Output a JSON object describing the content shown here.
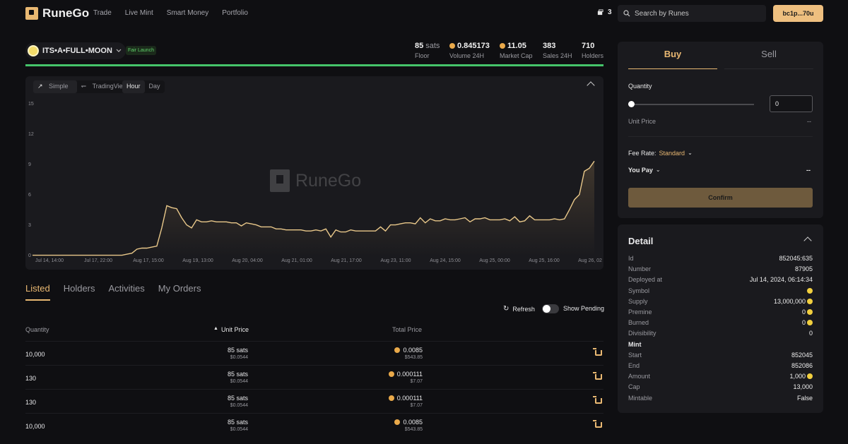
{
  "header": {
    "brand": "RuneGo",
    "nav": [
      "Trade",
      "Live Mint",
      "Smart Money",
      "Portfolio"
    ],
    "notifications": "3",
    "search_placeholder": "Search by Runes",
    "wallet": "bc1p...70u"
  },
  "token": {
    "name": "ITS•A•FULL•MOON",
    "badge": "Fair Launch",
    "stats": [
      {
        "value": "85",
        "unit": "sats",
        "label": "Floor"
      },
      {
        "value": "0.845173",
        "label": "Volume 24H"
      },
      {
        "value": "11.05",
        "label": "Market Cap"
      },
      {
        "value": "383",
        "label": "Sales 24H"
      },
      {
        "value": "710",
        "label": "Holders"
      }
    ]
  },
  "chart_controls": {
    "simple": "Simple",
    "tradingview": "TradingView",
    "hour": "Hour",
    "day": "Day",
    "watermark": "RuneGo"
  },
  "chart_data": {
    "type": "area",
    "yticks": [
      "15",
      "12",
      "9",
      "6",
      "3",
      "0"
    ],
    "ylim": [
      0,
      15
    ],
    "xticks": [
      "Jul 14, 14:00",
      "Jul 17, 22:00",
      "Aug 17, 15:00",
      "Aug 19, 13:00",
      "Aug 20, 04:00",
      "Aug 21, 01:00",
      "Aug 21, 17:00",
      "Aug 23, 11:00",
      "Aug 24, 15:00",
      "Aug 25, 00:00",
      "Aug 25, 16:00",
      "Aug 26, 02"
    ],
    "values": [
      0.1,
      0.1,
      0.1,
      0.1,
      0.1,
      0.1,
      0.1,
      0.1,
      0.1,
      0.1,
      0.1,
      0.1,
      0.1,
      0.1,
      0.1,
      0.1,
      0.1,
      0.1,
      0.1,
      0.2,
      0.3,
      0.7,
      0.8,
      0.8,
      0.9,
      1.0,
      2.8,
      5.0,
      4.8,
      4.7,
      3.8,
      3.1,
      2.8,
      3.6,
      3.4,
      3.4,
      3.5,
      3.4,
      3.4,
      3.4,
      3.3,
      3.3,
      3.0,
      3.3,
      3.2,
      3.1,
      2.9,
      2.9,
      2.9,
      2.7,
      2.7,
      2.6,
      2.6,
      2.6,
      2.6,
      2.5,
      2.5,
      2.6,
      2.5,
      2.7,
      1.9,
      2.6,
      2.4,
      2.4,
      2.6,
      2.5,
      2.5,
      2.5,
      2.5,
      2.5,
      2.9,
      2.5,
      3.1,
      3.1,
      3.2,
      3.3,
      3.3,
      3.2,
      3.8,
      3.3,
      3.7,
      3.5,
      3.5,
      3.7,
      3.6,
      3.6,
      3.7,
      3.8,
      3.4,
      3.7,
      3.7,
      3.8,
      3.6,
      3.6,
      3.6,
      3.7,
      3.5,
      3.9,
      3.4,
      3.5,
      4.0,
      3.6,
      3.6,
      3.6,
      3.6,
      3.7,
      3.6,
      3.7,
      4.6,
      5.6,
      6.1,
      8.4,
      8.7,
      9.4
    ]
  },
  "tabs": [
    "Listed",
    "Holders",
    "Activities",
    "My Orders"
  ],
  "list_controls": {
    "refresh": "Refresh",
    "show_pending": "Show Pending"
  },
  "table": {
    "headers": {
      "quantity": "Quantity",
      "unit_price": "Unit Price",
      "total_price": "Total Price"
    },
    "rows": [
      {
        "qty": "10,000",
        "price": "85 sats",
        "price_usd": "$0.0544",
        "total": "0.0085",
        "total_usd": "$543.85"
      },
      {
        "qty": "130",
        "price": "85 sats",
        "price_usd": "$0.0544",
        "total": "0.000111",
        "total_usd": "$7.07"
      },
      {
        "qty": "130",
        "price": "85 sats",
        "price_usd": "$0.0544",
        "total": "0.000111",
        "total_usd": "$7.07"
      },
      {
        "qty": "10,000",
        "price": "85 sats",
        "price_usd": "$0.0544",
        "total": "0.0085",
        "total_usd": "$543.85"
      }
    ]
  },
  "trade": {
    "buy": "Buy",
    "sell": "Sell",
    "quantity": "Quantity",
    "quantity_value": "0",
    "unit_price": "Unit Price",
    "unit_price_value": "--",
    "fee_rate": "Fee Rate:",
    "fee_value": "Standard",
    "you_pay": "You Pay",
    "you_pay_value": "--",
    "confirm": "Confirm"
  },
  "detail": {
    "title": "Detail",
    "rows": [
      {
        "k": "Id",
        "v": "852045:635"
      },
      {
        "k": "Number",
        "v": "87905"
      },
      {
        "k": "Deployed at",
        "v": "Jul 14, 2024, 06:14:34"
      },
      {
        "k": "Symbol",
        "v": "",
        "coin": true
      },
      {
        "k": "Supply",
        "v": "13,000,000",
        "coin": true
      },
      {
        "k": "Premine",
        "v": "0",
        "coin": true
      },
      {
        "k": "Burned",
        "v": "0",
        "coin": true
      },
      {
        "k": "Divisibility",
        "v": "0"
      }
    ],
    "mint_title": "Mint",
    "mint_rows": [
      {
        "k": "Start",
        "v": "852045"
      },
      {
        "k": "End",
        "v": "852086"
      },
      {
        "k": "Amount",
        "v": "1,000",
        "coin": true
      },
      {
        "k": "Cap",
        "v": "13,000"
      },
      {
        "k": "Mintable",
        "v": "False"
      }
    ]
  }
}
